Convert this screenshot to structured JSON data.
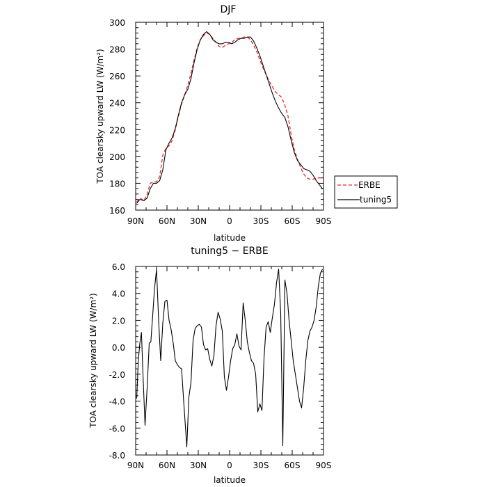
{
  "chart_data": [
    {
      "type": "line",
      "title": "DJF",
      "xlabel": "latitude",
      "ylabel": "TOA clearsky upward LW (W/m²)",
      "xlim": [
        -90,
        90
      ],
      "ylim": [
        160,
        300
      ],
      "xticks": [
        "90N",
        "60N",
        "30N",
        "0",
        "30S",
        "60S",
        "90S"
      ],
      "yticks": [
        "160",
        "180",
        "200",
        "220",
        "240",
        "260",
        "280",
        "300"
      ],
      "legend": {
        "placement": "right",
        "entries": [
          "ERBE",
          "tuning5"
        ]
      },
      "series": [
        {
          "name": "ERBE",
          "style": "dashed",
          "color": "#e8262a",
          "x": [
            -89,
            -86,
            -82,
            -79,
            -76,
            -73,
            -70,
            -67,
            -64,
            -61,
            -58,
            -55,
            -52,
            -49,
            -46,
            -43,
            -40,
            -37,
            -34,
            -31,
            -28,
            -25,
            -22,
            -19,
            -16,
            -13,
            -10,
            -7,
            -4,
            -1,
            2,
            5,
            8,
            11,
            14,
            17,
            20,
            23,
            26,
            29,
            32,
            35,
            38,
            41,
            44,
            47,
            50,
            53,
            56,
            59,
            62,
            65,
            68,
            71,
            74,
            77,
            80,
            83,
            86,
            89
          ],
          "y": [
            166,
            169,
            167,
            172,
            180,
            181,
            181,
            185,
            201,
            206,
            208,
            212,
            220,
            230,
            239,
            246,
            253,
            262,
            272,
            281,
            287,
            290,
            292,
            291,
            288,
            285,
            282,
            281,
            283,
            284,
            285,
            287,
            288,
            288,
            289,
            289,
            287,
            283,
            278,
            272,
            266,
            261,
            256,
            252,
            248,
            246,
            244,
            238,
            230,
            216,
            205,
            198,
            192,
            187,
            184,
            183,
            183,
            184,
            184,
            184
          ]
        },
        {
          "name": "tuning5",
          "style": "solid",
          "color": "#000000",
          "x": [
            -89,
            -86,
            -82,
            -79,
            -76,
            -73,
            -70,
            -67,
            -64,
            -61,
            -58,
            -55,
            -52,
            -49,
            -46,
            -43,
            -40,
            -37,
            -34,
            -31,
            -28,
            -25,
            -22,
            -19,
            -16,
            -13,
            -10,
            -7,
            -4,
            -1,
            2,
            5,
            8,
            11,
            14,
            17,
            20,
            23,
            26,
            29,
            32,
            35,
            38,
            41,
            44,
            47,
            50,
            53,
            56,
            59,
            62,
            65,
            68,
            71,
            74,
            77,
            80,
            83,
            86,
            89
          ],
          "y": [
            165,
            168,
            167,
            169,
            176,
            180,
            180,
            182,
            190,
            205,
            210,
            214,
            221,
            231,
            240,
            246,
            250,
            258,
            270,
            280,
            287,
            291,
            293,
            291,
            287,
            285,
            284,
            284,
            285,
            285,
            284,
            285,
            287,
            288,
            288,
            289,
            289,
            286,
            281,
            275,
            268,
            261,
            254,
            247,
            241,
            236,
            232,
            229,
            222,
            212,
            203,
            197,
            194,
            191,
            190,
            189,
            186,
            182,
            179,
            176
          ]
        }
      ]
    },
    {
      "type": "line",
      "title": "tuning5 − ERBE",
      "xlabel": "latitude",
      "ylabel": "TOA clearsky upward LW (W/m²)",
      "xlim": [
        -90,
        90
      ],
      "ylim": [
        -8,
        6
      ],
      "xticks": [
        "90N",
        "60N",
        "30N",
        "0",
        "30S",
        "60S",
        "90S"
      ],
      "yticks": [
        "-8.0",
        "-6.0",
        "-4.0",
        "-2.0",
        "0.0",
        "2.0",
        "4.0",
        "6.0"
      ],
      "series": [
        {
          "style": "solid",
          "color": "#000000",
          "x": [
            -89,
            -87.5,
            -86,
            -84.5,
            -83,
            -81,
            -79,
            -77,
            -75.5,
            -74,
            -72,
            -70,
            -68,
            -66,
            -64,
            -62,
            -60,
            -58,
            -56,
            -54,
            -52,
            -50,
            -48,
            -46,
            -44,
            -41,
            -39,
            -37,
            -35,
            -33,
            -31,
            -29,
            -27,
            -25,
            -23,
            -21,
            -19,
            -17,
            -15,
            -13,
            -11,
            -9,
            -7,
            -5,
            -3,
            -1,
            1,
            3,
            5,
            7,
            9,
            11,
            13,
            15,
            17,
            19,
            21,
            23,
            25,
            27,
            29,
            31,
            33,
            35,
            37,
            39,
            41,
            43,
            45,
            47,
            49,
            51,
            53,
            55,
            57,
            59,
            61,
            63,
            65,
            67,
            69,
            71,
            73,
            75,
            77,
            79,
            81,
            83,
            85,
            87,
            89
          ],
          "y": [
            -3.8,
            -1,
            0.3,
            1.1,
            -2.0,
            -5.8,
            -3.0,
            0.3,
            0.4,
            2.0,
            4.3,
            5.8,
            2.0,
            -1.0,
            1.8,
            3.4,
            3.5,
            2.0,
            1.3,
            0.3,
            -1.0,
            -1.3,
            -1.5,
            -1.6,
            -4.0,
            -7.4,
            -3.7,
            -2.6,
            0.5,
            1.4,
            1.6,
            1.7,
            1.5,
            0.2,
            -0.2,
            -0.1,
            -0.9,
            -1.4,
            -0.6,
            1.6,
            2.6,
            2.1,
            1.2,
            -2.2,
            -3.2,
            -2.2,
            -1.0,
            -0.1,
            0.2,
            1.0,
            0.1,
            -0.2,
            3.3,
            2.0,
            0.4,
            -0.4,
            -1.0,
            -1.2,
            -2.0,
            -4.8,
            -4.2,
            -4.7,
            -0.8,
            1.5,
            1.9,
            1.1,
            2.2,
            3.2,
            4.8,
            5.8,
            2.5,
            -7.3,
            5.0,
            4.0,
            2.0,
            0.5,
            -1.0,
            -2.0,
            -3.0,
            -4.0,
            -4.5,
            -3.0,
            -1.0,
            0.5,
            1.2,
            1.5,
            2.0,
            3.0,
            4.5,
            5.5,
            5.8
          ]
        }
      ]
    }
  ]
}
